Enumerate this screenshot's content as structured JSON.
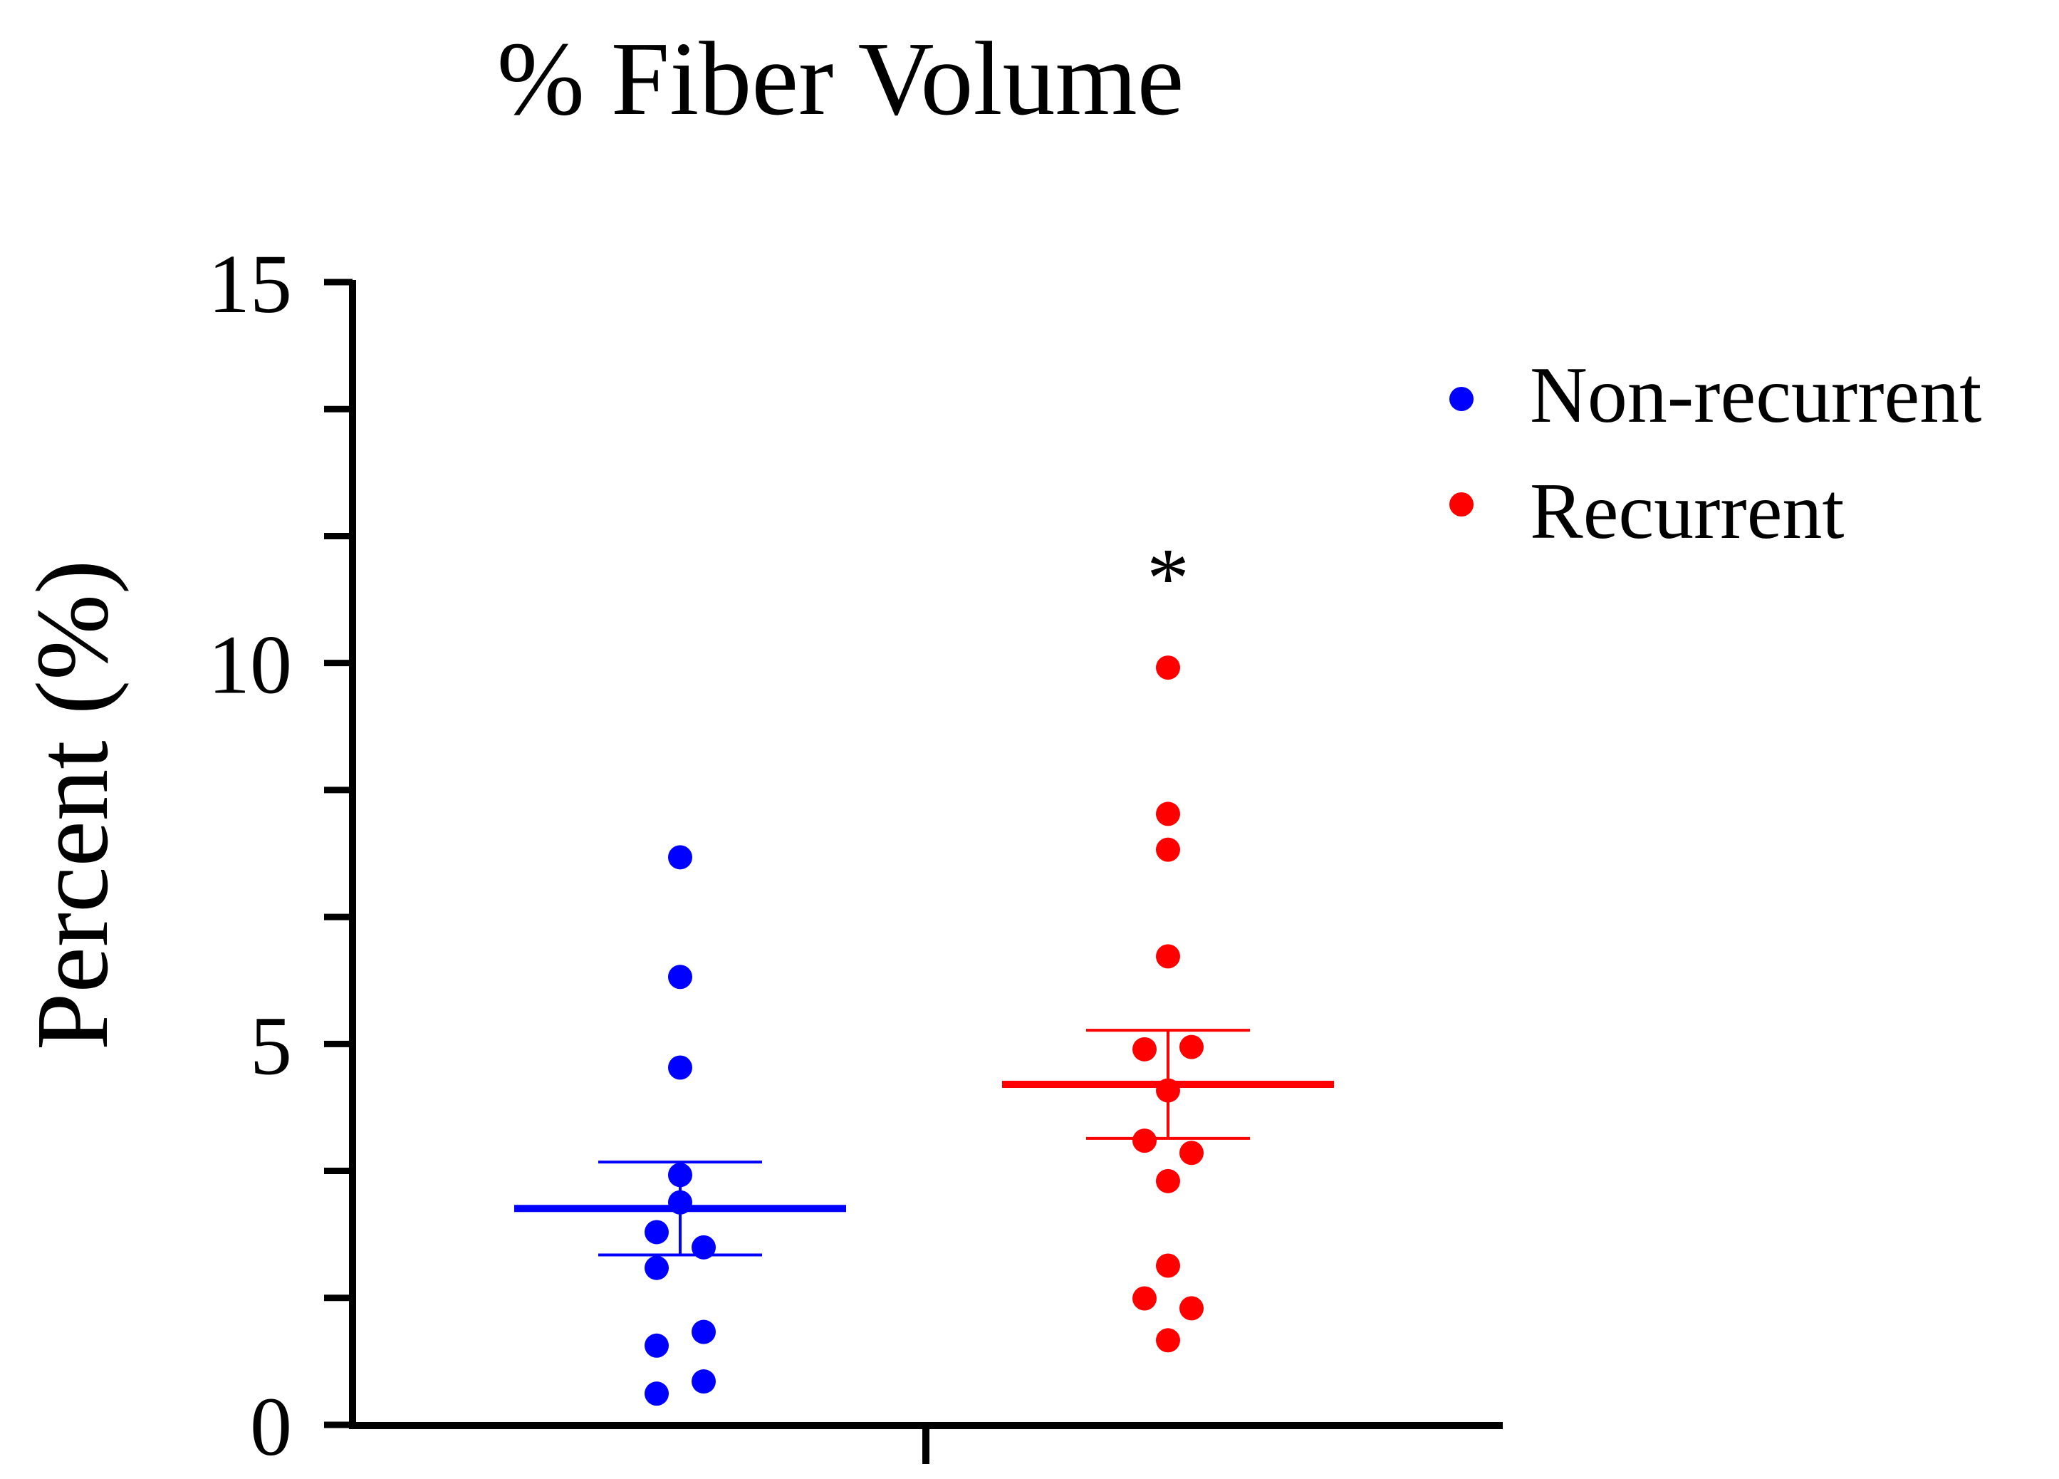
{
  "chart_data": {
    "type": "scatter",
    "title": "% Fiber Volume",
    "xlabel": "",
    "ylabel": "Percent (%)",
    "ylim": [
      0,
      15
    ],
    "yticks": [
      0,
      5,
      10,
      15
    ],
    "y_minor_step": 1.66667,
    "grid": false,
    "legend_position": "top-right",
    "significance_marker": {
      "text": "*",
      "series": "Recurrent",
      "y": 11.3
    },
    "series": [
      {
        "name": "Non-recurrent",
        "color": "#0000ff",
        "mean": 2.84,
        "sem_low": 2.23,
        "sem_high": 3.45,
        "points": [
          {
            "dx": 0.0,
            "y": 7.45
          },
          {
            "dx": 0.0,
            "y": 5.88
          },
          {
            "dx": 0.0,
            "y": 4.69
          },
          {
            "dx": 0.0,
            "y": 3.28
          },
          {
            "dx": 0.0,
            "y": 2.92
          },
          {
            "dx": -1.0,
            "y": 2.53
          },
          {
            "dx": 1.0,
            "y": 2.33
          },
          {
            "dx": -1.0,
            "y": 2.06
          },
          {
            "dx": 1.0,
            "y": 1.22
          },
          {
            "dx": -1.0,
            "y": 1.04
          },
          {
            "dx": 1.0,
            "y": 0.57
          },
          {
            "dx": -1.0,
            "y": 0.41
          }
        ]
      },
      {
        "name": "Recurrent",
        "color": "#ff0000",
        "mean": 4.47,
        "sem_low": 3.76,
        "sem_high": 5.18,
        "points": [
          {
            "dx": 0.0,
            "y": 9.94
          },
          {
            "dx": 0.0,
            "y": 8.02
          },
          {
            "dx": 0.0,
            "y": 7.55
          },
          {
            "dx": 0.0,
            "y": 6.15
          },
          {
            "dx": -1.0,
            "y": 4.93
          },
          {
            "dx": 1.0,
            "y": 4.96
          },
          {
            "dx": 0.0,
            "y": 4.39
          },
          {
            "dx": -1.0,
            "y": 3.73
          },
          {
            "dx": 1.0,
            "y": 3.57
          },
          {
            "dx": 0.0,
            "y": 3.2
          },
          {
            "dx": 0.0,
            "y": 2.09
          },
          {
            "dx": -1.0,
            "y": 1.66
          },
          {
            "dx": 1.0,
            "y": 1.53
          },
          {
            "dx": 0.0,
            "y": 1.11
          }
        ]
      }
    ]
  }
}
